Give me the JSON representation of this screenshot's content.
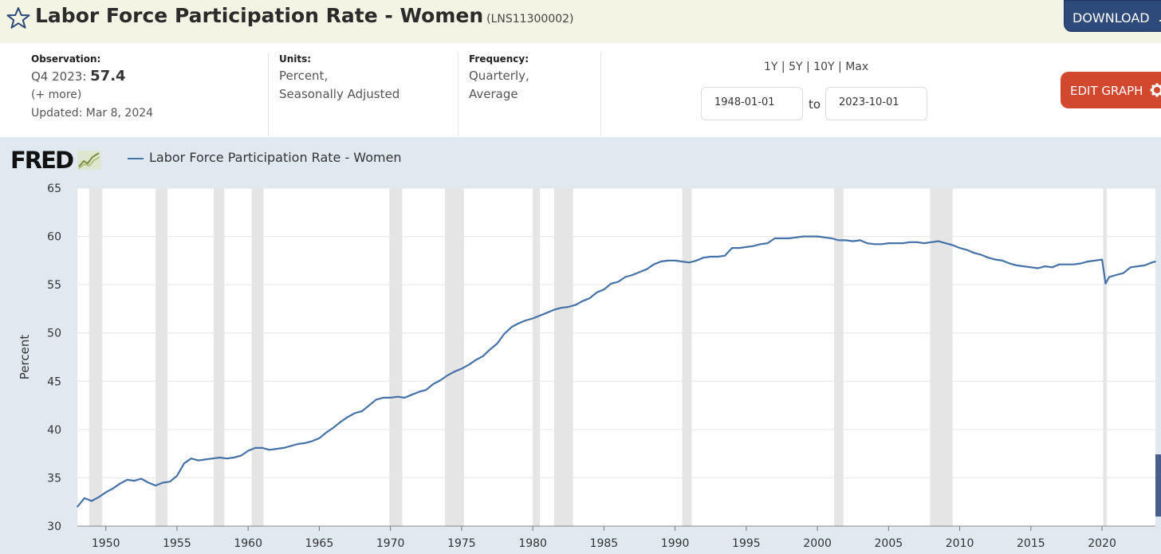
{
  "header": {
    "title": "Labor Force Participation Rate - Women",
    "series_id": "(LNS11300002)",
    "download_label": "DOWNLOAD",
    "star_icon": "star-icon",
    "download_icon": "download-icon"
  },
  "meta": {
    "observation_label": "Observation:",
    "observation_period": "Q4 2023:",
    "observation_value": "57.4",
    "more": "(+ more)",
    "updated": "Updated: Mar 8, 2024",
    "units_label": "Units:",
    "units_line1": "Percent,",
    "units_line2": "Seasonally Adjusted",
    "frequency_label": "Frequency:",
    "frequency_line1": "Quarterly,",
    "frequency_line2": "Average",
    "ranges": [
      "1Y",
      "5Y",
      "10Y",
      "Max"
    ],
    "range_sep": "|",
    "start_date": "1948-01-01",
    "to_label": "to",
    "end_date": "2023-10-01",
    "edit_label": "EDIT GRAPH",
    "gear_icon": "gear-icon"
  },
  "chart_brand": "FRED",
  "chart_data": {
    "type": "line",
    "title": "",
    "ylabel": "Percent",
    "xlabel": "",
    "ylim": [
      30,
      65
    ],
    "xlim": [
      1948.0,
      2023.75
    ],
    "yticks": [
      30,
      35,
      40,
      45,
      50,
      55,
      60,
      65
    ],
    "xticks": [
      1950,
      1955,
      1960,
      1965,
      1970,
      1975,
      1980,
      1985,
      1990,
      1995,
      2000,
      2005,
      2010,
      2015,
      2020
    ],
    "grid": true,
    "legend_position": "top-left",
    "series": [
      {
        "name": "Labor Force Participation Rate - Women",
        "color": "#4572a7",
        "x": [
          1948.0,
          1948.5,
          1949.0,
          1949.5,
          1950.0,
          1950.5,
          1951.0,
          1951.5,
          1952.0,
          1952.5,
          1953.0,
          1953.5,
          1954.0,
          1954.5,
          1955.0,
          1955.5,
          1956.0,
          1956.5,
          1957.0,
          1957.5,
          1958.0,
          1958.5,
          1959.0,
          1959.5,
          1960.0,
          1960.5,
          1961.0,
          1961.5,
          1962.0,
          1962.5,
          1963.0,
          1963.5,
          1964.0,
          1964.5,
          1965.0,
          1965.5,
          1966.0,
          1966.5,
          1967.0,
          1967.5,
          1968.0,
          1968.5,
          1969.0,
          1969.5,
          1970.0,
          1970.5,
          1971.0,
          1971.5,
          1972.0,
          1972.5,
          1973.0,
          1973.5,
          1974.0,
          1974.5,
          1975.0,
          1975.5,
          1976.0,
          1976.5,
          1977.0,
          1977.5,
          1978.0,
          1978.5,
          1979.0,
          1979.5,
          1980.0,
          1980.5,
          1981.0,
          1981.5,
          1982.0,
          1982.5,
          1983.0,
          1983.5,
          1984.0,
          1984.5,
          1985.0,
          1985.5,
          1986.0,
          1986.5,
          1987.0,
          1987.5,
          1988.0,
          1988.5,
          1989.0,
          1989.5,
          1990.0,
          1990.5,
          1991.0,
          1991.5,
          1992.0,
          1992.5,
          1993.0,
          1993.5,
          1994.0,
          1994.5,
          1995.0,
          1995.5,
          1996.0,
          1996.5,
          1997.0,
          1997.5,
          1998.0,
          1998.5,
          1999.0,
          1999.5,
          2000.0,
          2000.5,
          2001.0,
          2001.5,
          2002.0,
          2002.5,
          2003.0,
          2003.5,
          2004.0,
          2004.5,
          2005.0,
          2005.5,
          2006.0,
          2006.5,
          2007.0,
          2007.5,
          2008.0,
          2008.5,
          2009.0,
          2009.5,
          2010.0,
          2010.5,
          2011.0,
          2011.5,
          2012.0,
          2012.5,
          2013.0,
          2013.5,
          2014.0,
          2014.5,
          2015.0,
          2015.5,
          2016.0,
          2016.5,
          2017.0,
          2017.5,
          2018.0,
          2018.5,
          2019.0,
          2019.5,
          2020.0,
          2020.25,
          2020.5,
          2020.75,
          2021.0,
          2021.5,
          2022.0,
          2022.5,
          2023.0,
          2023.5,
          2023.75
        ],
        "values": [
          32.0,
          32.9,
          32.6,
          33.0,
          33.5,
          33.9,
          34.4,
          34.8,
          34.7,
          34.9,
          34.5,
          34.2,
          34.5,
          34.6,
          35.2,
          36.5,
          37.0,
          36.8,
          36.9,
          37.0,
          37.1,
          37.0,
          37.1,
          37.3,
          37.8,
          38.1,
          38.1,
          37.9,
          38.0,
          38.1,
          38.3,
          38.5,
          38.6,
          38.8,
          39.1,
          39.7,
          40.2,
          40.8,
          41.3,
          41.7,
          41.9,
          42.5,
          43.1,
          43.3,
          43.3,
          43.4,
          43.3,
          43.6,
          43.9,
          44.1,
          44.7,
          45.1,
          45.6,
          46.0,
          46.3,
          46.7,
          47.2,
          47.6,
          48.3,
          48.9,
          49.9,
          50.6,
          51.0,
          51.3,
          51.5,
          51.8,
          52.1,
          52.4,
          52.6,
          52.7,
          52.9,
          53.3,
          53.6,
          54.2,
          54.5,
          55.1,
          55.3,
          55.8,
          56.0,
          56.3,
          56.6,
          57.1,
          57.4,
          57.5,
          57.5,
          57.4,
          57.3,
          57.5,
          57.8,
          57.9,
          57.9,
          58.0,
          58.8,
          58.8,
          58.9,
          59.0,
          59.2,
          59.3,
          59.8,
          59.8,
          59.8,
          59.9,
          60.0,
          60.0,
          60.0,
          59.9,
          59.8,
          59.6,
          59.6,
          59.5,
          59.6,
          59.3,
          59.2,
          59.2,
          59.3,
          59.3,
          59.3,
          59.4,
          59.4,
          59.3,
          59.4,
          59.5,
          59.3,
          59.1,
          58.8,
          58.6,
          58.3,
          58.1,
          57.8,
          57.6,
          57.5,
          57.2,
          57.0,
          56.9,
          56.8,
          56.7,
          56.9,
          56.8,
          57.1,
          57.1,
          57.1,
          57.2,
          57.4,
          57.5,
          57.6,
          55.1,
          55.8,
          55.9,
          56.0,
          56.2,
          56.8,
          56.9,
          57.0,
          57.3,
          57.4
        ]
      }
    ],
    "recession_color": "#e5e5e5",
    "recessions": [
      [
        1948.83,
        1949.75
      ],
      [
        1953.5,
        1954.33
      ],
      [
        1957.58,
        1958.33
      ],
      [
        1960.25,
        1961.08
      ],
      [
        1969.92,
        1970.83
      ],
      [
        1973.83,
        1975.17
      ],
      [
        1980.0,
        1980.5
      ],
      [
        1981.5,
        1982.83
      ],
      [
        1990.5,
        1991.17
      ],
      [
        2001.17,
        2001.83
      ],
      [
        2007.92,
        2009.5
      ],
      [
        2020.08,
        2020.33
      ]
    ]
  }
}
